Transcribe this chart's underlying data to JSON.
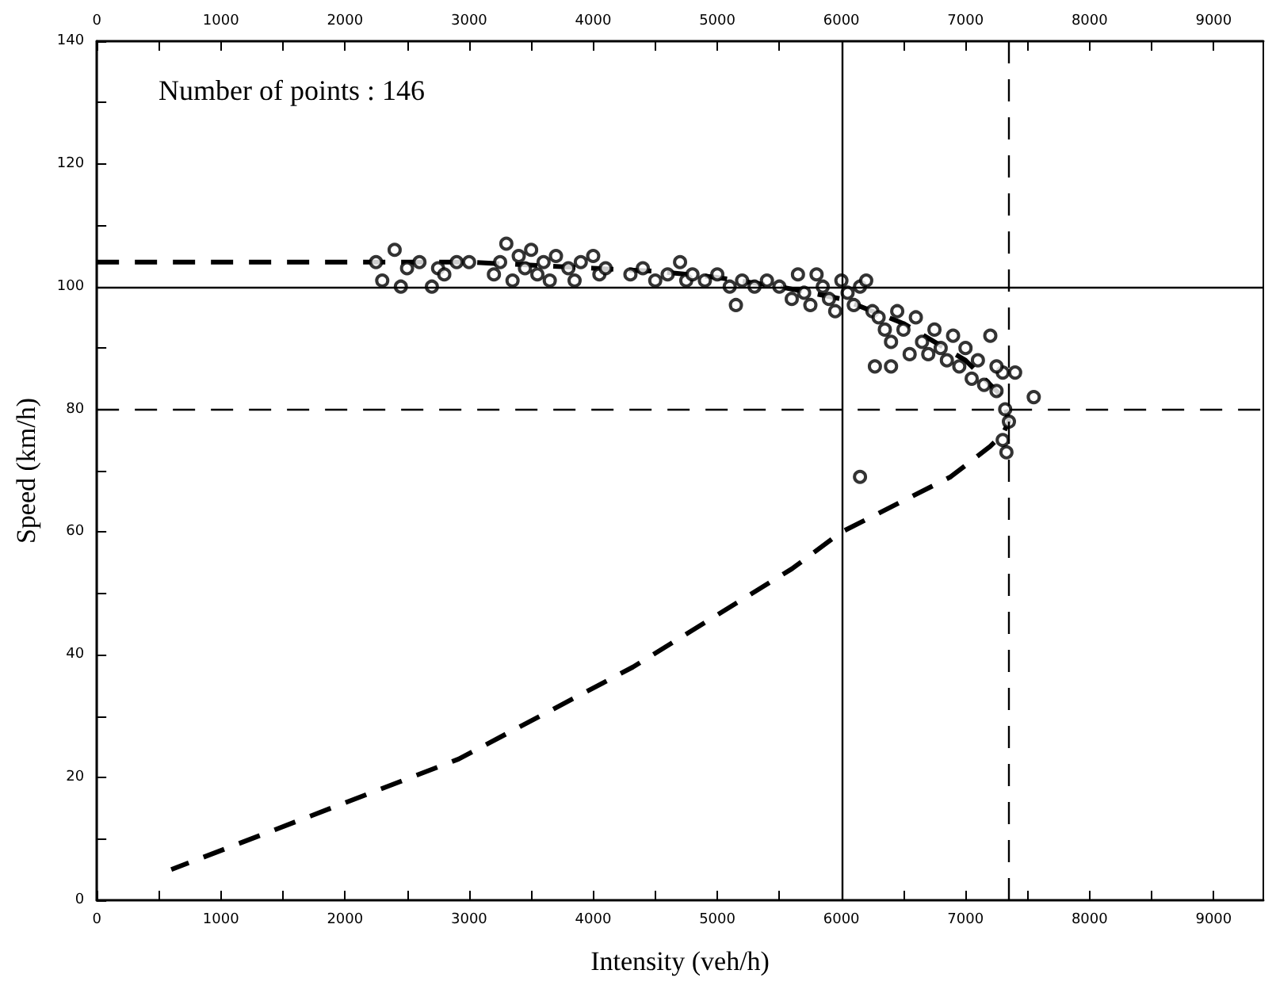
{
  "chart_data": {
    "type": "scatter",
    "xlabel": "Intensity (veh/h)",
    "ylabel": "Speed (km/h)",
    "annotations": [
      "Number of points : 146"
    ],
    "xlim": [
      0,
      9400
    ],
    "xticks": [
      0,
      {
        "value": 500,
        "label": null
      },
      1000,
      {
        "value": 1500,
        "label": null
      },
      2000,
      {
        "value": 2500,
        "label": null
      },
      3000,
      {
        "value": 3500,
        "label": null
      },
      4000,
      {
        "value": 4500,
        "label": null
      },
      5000,
      {
        "value": 5500,
        "label": null
      },
      6000,
      {
        "value": 6500,
        "label": null
      },
      7000,
      {
        "value": 7500,
        "label": null
      },
      8000,
      {
        "value": 8500,
        "label": null
      },
      9000
    ],
    "x2lim": [
      0,
      9400
    ],
    "x2ticks": [
      0,
      {
        "value": 500,
        "label": null
      },
      1000,
      {
        "value": 1500,
        "label": null
      },
      2000,
      {
        "value": 2500,
        "label": null
      },
      3000,
      {
        "value": 3500,
        "label": null
      },
      4000,
      {
        "value": 4500,
        "label": null
      },
      5000,
      {
        "value": 5500,
        "label": null
      },
      6000,
      {
        "value": 6500,
        "label": null
      },
      7000,
      {
        "value": 7500,
        "label": null
      },
      8000,
      {
        "value": 8500,
        "label": null
      },
      9000
    ],
    "ylim": [
      0,
      140
    ],
    "yticks": [
      0,
      {
        "value": 10,
        "label": null
      },
      20,
      {
        "value": 30,
        "label": null
      },
      40,
      {
        "value": 50,
        "label": null
      },
      60,
      {
        "value": 70,
        "label": null
      },
      80,
      {
        "value": 90,
        "label": null
      },
      100,
      {
        "value": 110,
        "label": null
      },
      120,
      {
        "value": 130,
        "label": null
      },
      140
    ],
    "grid": false,
    "series": [
      {
        "type": "scatter",
        "color": "#000000",
        "marker": "circle",
        "x": [
          2250,
          2300,
          2400,
          2450,
          2500,
          2600,
          2700,
          2750,
          2800,
          2900,
          3000,
          3200,
          3250,
          3300,
          3350,
          3400,
          3450,
          3500,
          3550,
          3600,
          3650,
          3700,
          3800,
          3850,
          3900,
          4000,
          4050,
          4100,
          4300,
          4400,
          4500,
          4600,
          4700,
          4750,
          4800,
          4900,
          5000,
          5100,
          5150,
          5200,
          5300,
          5400,
          5500,
          5600,
          5650,
          5700,
          5750,
          5800,
          5850,
          5900,
          5950,
          6000,
          6050,
          6100,
          6150,
          6200,
          6250,
          6300,
          6350,
          6400,
          6450,
          6500,
          6550,
          6600,
          6650,
          6700,
          6750,
          6800,
          6850,
          6900,
          6950,
          7000,
          7050,
          7100,
          7150,
          7200,
          7250,
          7300,
          7320,
          7350,
          7300,
          7330,
          7250,
          6270,
          6400,
          6150,
          7550,
          7400
        ],
        "values": [
          104,
          101,
          106,
          100,
          103,
          104,
          100,
          103,
          102,
          104,
          104,
          102,
          104,
          107,
          101,
          105,
          103,
          106,
          102,
          104,
          101,
          105,
          103,
          101,
          104,
          105,
          102,
          103,
          102,
          103,
          101,
          102,
          104,
          101,
          102,
          101,
          102,
          100,
          97,
          101,
          100,
          101,
          100,
          98,
          102,
          99,
          97,
          102,
          100,
          98,
          96,
          101,
          99,
          97,
          100,
          101,
          96,
          95,
          93,
          91,
          96,
          93,
          89,
          95,
          91,
          89,
          93,
          90,
          88,
          92,
          87,
          90,
          85,
          88,
          84,
          92,
          83,
          86,
          80,
          78,
          75,
          73,
          87,
          87,
          87,
          69,
          82,
          86
        ]
      },
      {
        "type": "line",
        "color": "#000000",
        "marker": "none",
        "line_style": "dashed",
        "x": [
          0,
          2000,
          3000,
          4000,
          4500,
          5000,
          5500,
          6000,
          6500,
          7000,
          7300,
          7350,
          7300,
          7200,
          6880,
          6000,
          5600,
          4320,
          2915,
          600
        ],
        "values": [
          104,
          104,
          104,
          103,
          102.5,
          101.5,
          100,
          98,
          94,
          88,
          82,
          78,
          76,
          74,
          69,
          60,
          54,
          38,
          23,
          5
        ]
      }
    ],
    "ref_lines": [
      {
        "axis": "x",
        "value": 6000,
        "line_style": "solid"
      },
      {
        "axis": "x",
        "value": 7350,
        "line_style": "dashed"
      },
      {
        "axis": "y",
        "value": 100,
        "line_style": "solid"
      },
      {
        "axis": "y",
        "value": 80,
        "line_style": "dashed"
      }
    ]
  }
}
